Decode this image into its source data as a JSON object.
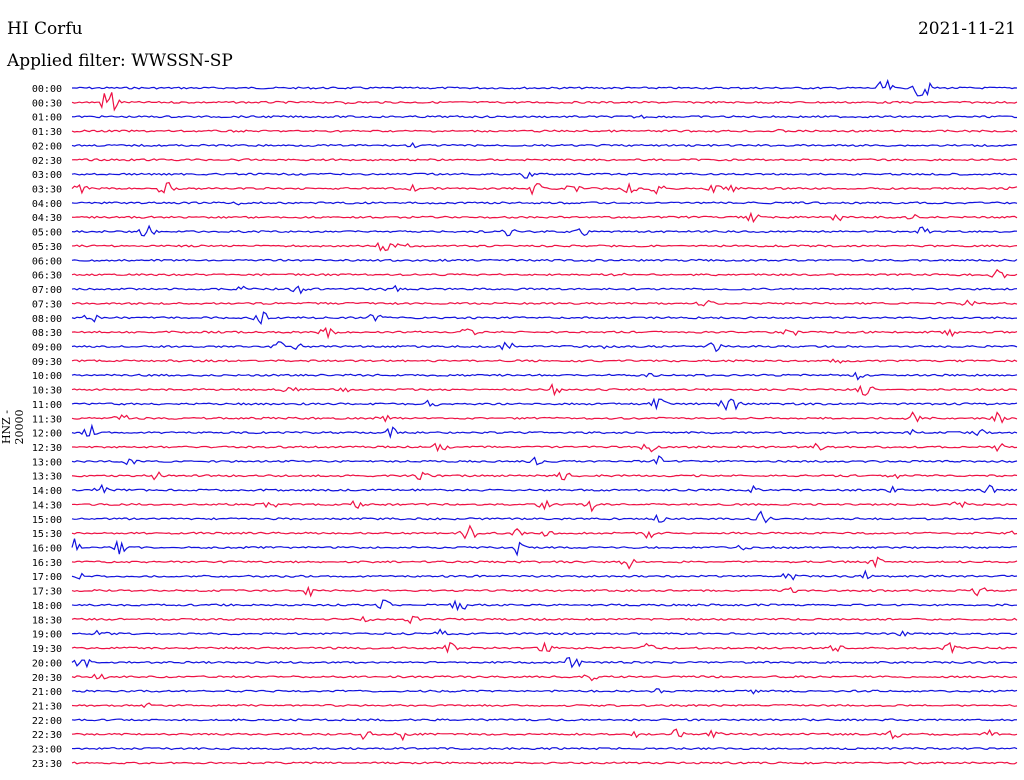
{
  "header": {
    "station": "HI Corfu",
    "date": "2021-11-21",
    "filter": "Applied filter: WWSSN-SP"
  },
  "chart_data": {
    "type": "line",
    "title": "HI Corfu",
    "subtitle": "Applied filter: WWSSN-SP",
    "ylabel": "HNZ - 20000",
    "xlabel": "",
    "colors": {
      "even_row": "#1111dd",
      "odd_row": "#ee1144"
    },
    "rows": [
      {
        "label": "00:00",
        "events": [
          [
            0.86,
            10
          ],
          [
            0.9,
            14
          ]
        ]
      },
      {
        "label": "00:30",
        "events": [
          [
            0.04,
            22
          ],
          [
            0.29,
            3
          ]
        ]
      },
      {
        "label": "01:00",
        "events": [
          [
            0.6,
            3
          ]
        ]
      },
      {
        "label": "01:30",
        "events": [
          [
            0.75,
            2
          ]
        ]
      },
      {
        "label": "02:00",
        "events": [
          [
            0.36,
            3
          ]
        ]
      },
      {
        "label": "02:30",
        "events": []
      },
      {
        "label": "03:00",
        "events": [
          [
            0.48,
            6
          ]
        ]
      },
      {
        "label": "03:30",
        "events": [
          [
            0.01,
            6
          ],
          [
            0.1,
            10
          ],
          [
            0.36,
            4
          ],
          [
            0.49,
            8
          ],
          [
            0.53,
            6
          ],
          [
            0.59,
            8
          ],
          [
            0.62,
            6
          ],
          [
            0.68,
            5
          ],
          [
            0.7,
            6
          ],
          [
            1.0,
            5
          ]
        ]
      },
      {
        "label": "04:00",
        "events": [
          [
            0.18,
            3
          ]
        ]
      },
      {
        "label": "04:30",
        "events": [
          [
            0.72,
            5
          ],
          [
            0.81,
            5
          ],
          [
            0.89,
            6
          ]
        ]
      },
      {
        "label": "05:00",
        "events": [
          [
            0.08,
            8
          ],
          [
            0.46,
            7
          ],
          [
            0.54,
            5
          ],
          [
            0.9,
            5
          ]
        ]
      },
      {
        "label": "05:30",
        "events": [
          [
            0.33,
            8
          ],
          [
            0.35,
            4
          ]
        ]
      },
      {
        "label": "06:00",
        "events": []
      },
      {
        "label": "06:30",
        "events": [
          [
            0.58,
            4
          ],
          [
            0.98,
            7
          ]
        ]
      },
      {
        "label": "07:00",
        "events": [
          [
            0.18,
            4
          ],
          [
            0.24,
            5
          ],
          [
            0.34,
            6
          ]
        ]
      },
      {
        "label": "07:30",
        "events": [
          [
            0.67,
            6
          ],
          [
            0.95,
            6
          ]
        ]
      },
      {
        "label": "08:00",
        "events": [
          [
            0.02,
            6
          ],
          [
            0.2,
            11
          ],
          [
            0.32,
            5
          ]
        ]
      },
      {
        "label": "08:30",
        "events": [
          [
            0.27,
            8
          ],
          [
            0.42,
            6
          ],
          [
            0.76,
            6
          ],
          [
            0.93,
            6
          ]
        ]
      },
      {
        "label": "09:00",
        "events": [
          [
            0.22,
            6
          ],
          [
            0.24,
            6
          ],
          [
            0.46,
            6
          ],
          [
            0.57,
            5
          ],
          [
            0.68,
            6
          ]
        ]
      },
      {
        "label": "09:30",
        "events": [
          [
            0.81,
            3
          ]
        ]
      },
      {
        "label": "10:00",
        "events": [
          [
            0.61,
            5
          ],
          [
            0.83,
            5
          ]
        ]
      },
      {
        "label": "10:30",
        "events": [
          [
            0.23,
            6
          ],
          [
            0.29,
            6
          ],
          [
            0.51,
            6
          ],
          [
            0.84,
            7
          ]
        ]
      },
      {
        "label": "11:00",
        "events": [
          [
            0.38,
            5
          ],
          [
            0.62,
            8
          ],
          [
            0.69,
            8
          ],
          [
            0.7,
            8
          ]
        ]
      },
      {
        "label": "11:30",
        "events": [
          [
            0.05,
            10
          ],
          [
            0.33,
            5
          ],
          [
            0.89,
            8
          ],
          [
            0.98,
            7
          ]
        ]
      },
      {
        "label": "12:00",
        "events": [
          [
            0.02,
            8
          ],
          [
            0.34,
            8
          ],
          [
            0.89,
            5
          ],
          [
            0.96,
            6
          ]
        ]
      },
      {
        "label": "12:30",
        "events": [
          [
            0.39,
            7
          ],
          [
            0.61,
            7
          ],
          [
            0.79,
            5
          ],
          [
            0.98,
            6
          ]
        ]
      },
      {
        "label": "13:00",
        "events": [
          [
            0.06,
            5
          ],
          [
            0.49,
            5
          ],
          [
            0.62,
            6
          ]
        ]
      },
      {
        "label": "13:30",
        "events": [
          [
            0.09,
            7
          ],
          [
            0.37,
            5
          ],
          [
            0.52,
            5
          ],
          [
            0.87,
            6
          ]
        ]
      },
      {
        "label": "14:00",
        "events": [
          [
            0.03,
            6
          ],
          [
            0.72,
            6
          ],
          [
            0.87,
            6
          ],
          [
            0.97,
            6
          ]
        ]
      },
      {
        "label": "14:30",
        "events": [
          [
            0.21,
            6
          ],
          [
            0.3,
            7
          ],
          [
            0.5,
            6
          ],
          [
            0.55,
            7
          ],
          [
            0.94,
            6
          ]
        ]
      },
      {
        "label": "15:00",
        "events": [
          [
            0.62,
            5
          ],
          [
            0.73,
            8
          ]
        ]
      },
      {
        "label": "15:30",
        "events": [
          [
            0.42,
            9
          ],
          [
            0.47,
            6
          ],
          [
            0.5,
            7
          ],
          [
            0.61,
            6
          ],
          [
            1.0,
            7
          ]
        ]
      },
      {
        "label": "16:00",
        "events": [
          [
            0.0,
            12
          ],
          [
            0.05,
            8
          ],
          [
            0.47,
            8
          ],
          [
            0.71,
            6
          ]
        ]
      },
      {
        "label": "16:30",
        "events": [
          [
            0.59,
            8
          ],
          [
            0.85,
            8
          ]
        ]
      },
      {
        "label": "17:00",
        "events": [
          [
            0.01,
            4
          ],
          [
            0.76,
            6
          ],
          [
            0.84,
            6
          ]
        ]
      },
      {
        "label": "17:30",
        "events": [
          [
            0.25,
            7
          ],
          [
            0.76,
            7
          ],
          [
            0.96,
            6
          ]
        ]
      },
      {
        "label": "18:00",
        "events": [
          [
            0.33,
            6
          ],
          [
            0.41,
            9
          ]
        ]
      },
      {
        "label": "18:30",
        "events": [
          [
            0.31,
            4
          ],
          [
            0.36,
            5
          ]
        ]
      },
      {
        "label": "19:00",
        "events": [
          [
            0.03,
            6
          ],
          [
            0.39,
            5
          ],
          [
            0.88,
            3
          ]
        ]
      },
      {
        "label": "19:30",
        "events": [
          [
            0.4,
            6
          ],
          [
            0.5,
            6
          ],
          [
            0.61,
            6
          ],
          [
            0.81,
            6
          ],
          [
            0.93,
            6
          ]
        ]
      },
      {
        "label": "20:00",
        "events": [
          [
            0.01,
            9
          ],
          [
            0.53,
            9
          ]
        ]
      },
      {
        "label": "20:30",
        "events": [
          [
            0.03,
            5
          ],
          [
            0.55,
            5
          ]
        ]
      },
      {
        "label": "21:00",
        "events": [
          [
            0.62,
            3
          ],
          [
            0.72,
            3
          ]
        ]
      },
      {
        "label": "21:30",
        "events": [
          [
            0.08,
            3
          ]
        ]
      },
      {
        "label": "22:00",
        "events": []
      },
      {
        "label": "22:30",
        "events": [
          [
            0.31,
            7
          ],
          [
            0.35,
            6
          ],
          [
            0.6,
            5
          ],
          [
            0.64,
            6
          ],
          [
            0.68,
            5
          ],
          [
            0.87,
            7
          ],
          [
            0.97,
            6
          ]
        ]
      },
      {
        "label": "23:00",
        "events": []
      },
      {
        "label": "23:30",
        "events": []
      }
    ]
  }
}
